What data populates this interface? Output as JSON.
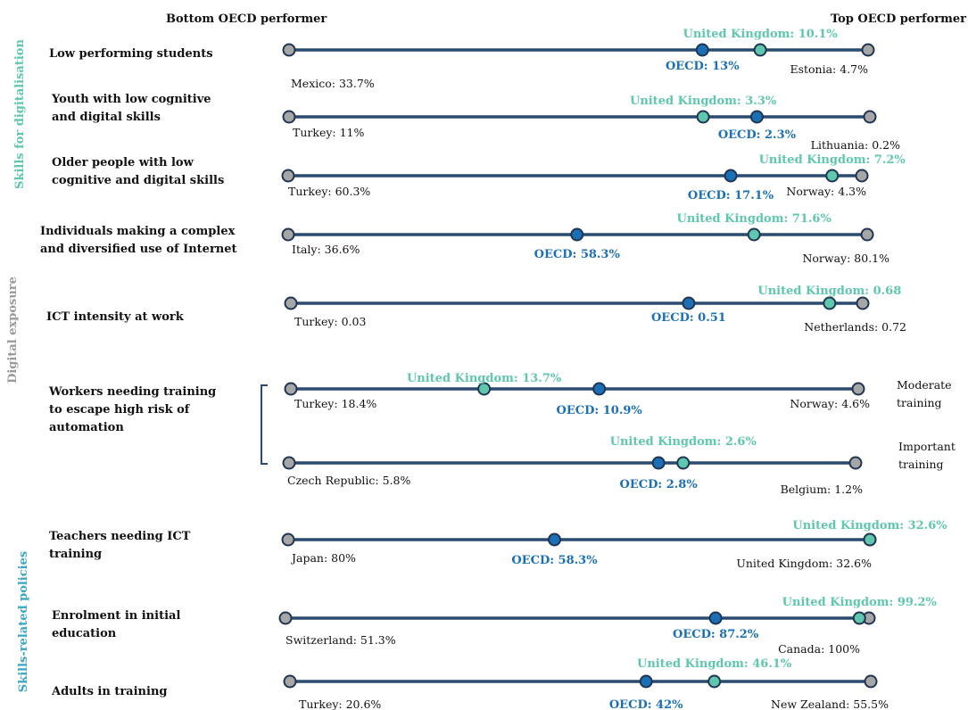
{
  "headers": {
    "left": "Bottom OECD performer",
    "right": "Top OECD performer"
  },
  "colors": {
    "line": "#2b4a6f",
    "point_edge": "#1f3552",
    "endpoint": "#a6a6a6",
    "uk": "#5ec7ae",
    "oecd": "#1a6fb5",
    "group_skills_digitalisation": "#5ec7ae",
    "group_digital_exposure": "#999999",
    "group_skills_policies": "#3aa6c4"
  },
  "groups": [
    {
      "name": "Skills for digitalisation",
      "color_key": "group_skills_digitalisation"
    },
    {
      "name": "Digital exposure",
      "color_key": "group_digital_exposure"
    },
    {
      "name": "Skills-related policies",
      "color_key": "group_skills_policies"
    }
  ],
  "side_labels": {
    "moderate": [
      "Moderate",
      "training"
    ],
    "important": [
      "Important",
      "training"
    ]
  },
  "chart_data": {
    "type": "dot-range",
    "title": "",
    "scale_note": "Each row normalised between the bottom (left) and top (right) OECD performer",
    "rows": [
      {
        "label": [
          "Low performing students"
        ],
        "left": "Mexico: 33.7%",
        "right": "Estonia: 4.7%",
        "uk": "United Kingdom: 10.1%",
        "oecd": "OECD: 13%",
        "left_value": 33.7,
        "right_value": 4.7,
        "uk_value": 10.1,
        "oecd_value": 13
      },
      {
        "label": [
          "Youth with low cognitive",
          "and digital skills"
        ],
        "left": "Turkey: 11%",
        "right": "Lithuania: 0.2%",
        "uk": "United Kingdom: 3.3%",
        "oecd": "OECD: 2.3%",
        "left_value": 11,
        "right_value": 0.2,
        "uk_value": 3.3,
        "oecd_value": 2.3
      },
      {
        "label": [
          "Older people with low",
          "cognitive and digital skills"
        ],
        "left": "Turkey: 60.3%",
        "right": "Norway: 4.3%",
        "uk": "United Kingdom: 7.2%",
        "oecd": "OECD: 17.1%",
        "left_value": 60.3,
        "right_value": 4.3,
        "uk_value": 7.2,
        "oecd_value": 17.1
      },
      {
        "label": [
          "Individuals making a complex",
          "and diversified use of Internet"
        ],
        "left": "Italy: 36.6%",
        "right": "Norway: 80.1%",
        "uk": "United Kingdom: 71.6%",
        "oecd": "OECD: 58.3%",
        "left_value": 36.6,
        "right_value": 80.1,
        "uk_value": 71.6,
        "oecd_value": 58.3
      },
      {
        "label": [
          "ICT intensity at work"
        ],
        "left": "Turkey: 0.03",
        "right": "Netherlands: 0.72",
        "uk": "United Kingdom: 0.68",
        "oecd": "OECD: 0.51",
        "left_value": 0.03,
        "right_value": 0.72,
        "uk_value": 0.68,
        "oecd_value": 0.51
      },
      {
        "label": [
          "Workers needing training",
          "to escape high risk of",
          "automation"
        ],
        "left": "Turkey: 18.4%",
        "right": "Norway: 4.6%",
        "uk": "United Kingdom: 13.7%",
        "oecd": "OECD: 10.9%",
        "left_value": 18.4,
        "right_value": 4.6,
        "uk_value": 13.7,
        "oecd_value": 10.9
      },
      {
        "label": [],
        "left": "Czech Republic: 5.8%",
        "right": "Belgium: 1.2%",
        "uk": "United Kingdom: 2.6%",
        "oecd": "OECD: 2.8%",
        "left_value": 5.8,
        "right_value": 1.2,
        "uk_value": 2.6,
        "oecd_value": 2.8
      },
      {
        "label": [
          "Teachers needing ICT",
          "training"
        ],
        "left": "Japan: 80%",
        "right": "United Kingdom: 32.6%",
        "uk": "United Kingdom: 32.6%",
        "oecd": "OECD: 58.3%",
        "left_value": 80,
        "right_value": 32.6,
        "uk_value": 32.6,
        "oecd_value": 58.3
      },
      {
        "label": [
          "Enrolment in initial",
          "education"
        ],
        "left": "Switzerland: 51.3%",
        "right": "Canada: 100%",
        "uk": "United Kingdom: 99.2%",
        "oecd": "OECD: 87.2%",
        "left_value": 51.3,
        "right_value": 100,
        "uk_value": 99.2,
        "oecd_value": 87.2
      },
      {
        "label": [
          "Adults in training"
        ],
        "left": "Turkey: 20.6%",
        "right": "New Zealand: 55.5%",
        "uk": "United Kingdom: 46.1%",
        "oecd": "OECD: 42%",
        "left_value": 20.6,
        "right_value": 55.5,
        "uk_value": 46.1,
        "oecd_value": 42
      }
    ]
  }
}
